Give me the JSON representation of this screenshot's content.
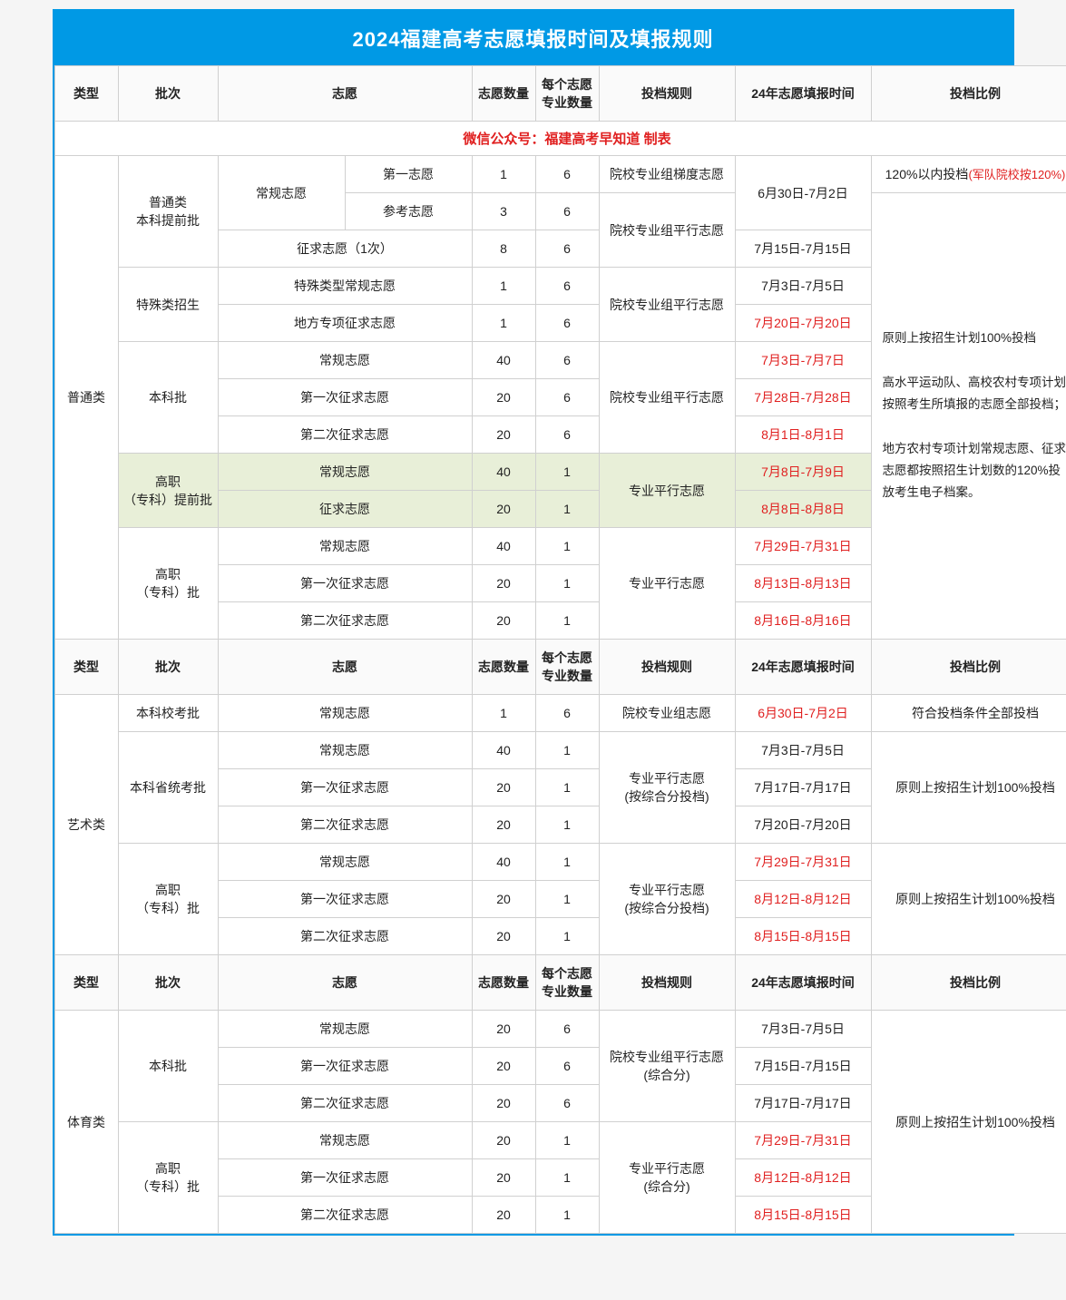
{
  "title": "2024福建高考志愿填报时间及填报规则",
  "banner": "微信公众号：福建高考早知道 制表",
  "headers": {
    "type": "类型",
    "batch": "批次",
    "preference": "志愿",
    "pref_count": "志愿数量",
    "major_count": "每个志愿专业数量",
    "rule": "投档规则",
    "time": "24年志愿填报时间",
    "ratio": "投档比例"
  },
  "categories": {
    "general": "普通类",
    "art": "艺术类",
    "sports": "体育类"
  },
  "batches": {
    "undergrad_early": "普通类\n本科提前批",
    "special_recruit": "特殊类招生",
    "undergrad": "本科批",
    "vocational_early": "高职\n（专科）提前批",
    "vocational": "高职\n（专科）批",
    "art_school_exam": "本科校考批",
    "art_prov_exam": "本科省统考批"
  },
  "prefs": {
    "regular": "常规志愿",
    "first": "第一志愿",
    "reference": "参考志愿",
    "supp_once": "征求志愿（1次）",
    "special_regular": "特殊类型常规志愿",
    "local_special_supp": "地方专项征求志愿",
    "first_supp": "第一次征求志愿",
    "second_supp": "第二次征求志愿",
    "supp": "征求志愿"
  },
  "rules": {
    "school_major_ladder": "院校专业组梯度志愿",
    "school_major_parallel": "院校专业组平行志愿",
    "major_parallel": "专业平行志愿",
    "school_major": "院校专业组志愿",
    "major_parallel_comp": "专业平行志愿\n(按综合分投档)",
    "school_major_parallel_comp": "院校专业组平行志愿\n(综合分)",
    "major_parallel_comp2": "专业平行志愿\n(综合分)"
  },
  "times": {
    "t0630_0702": "6月30日-7月2日",
    "t0715_0715": "7月15日-7月15日",
    "t0703_0705": "7月3日-7月5日",
    "t0720_0720": "7月20日-7月20日",
    "t0703_0707": "7月3日-7月7日",
    "t0728_0728": "7月28日-7月28日",
    "t0801_0801": "8月1日-8月1日",
    "t0708_0709": "7月8日-7月9日",
    "t0808_0808": "8月8日-8月8日",
    "t0729_0731": "7月29日-7月31日",
    "t0813_0813": "8月13日-8月13日",
    "t0816_0816": "8月16日-8月16日",
    "t0717_0717": "7月17日-7月17日",
    "t0812_0812": "8月12日-8月12日",
    "t0815_0815": "8月15日-8月15日"
  },
  "ratios": {
    "r120_prefix": "120%以内投档",
    "r120_note": "(军队院校按120%)",
    "r100_long_p1": "原则上按招生计划100%投档",
    "r100_long_p2": "高水平运动队、高校农村专项计划按照考生所填报的志愿全部投档；",
    "r100_long_p3": "地方农村专项计划常规志愿、征求志愿都按照招生计划数的120%投放考生电子档案。",
    "r_all_qualified": "符合投档条件全部投档",
    "r100": "原则上按招生计划100%投档"
  },
  "nums": {
    "n1": "1",
    "n3": "3",
    "n6": "6",
    "n8": "8",
    "n20": "20",
    "n40": "40"
  },
  "colors": {
    "header_bg": "#0099e5",
    "border": "#d0d0d0",
    "red": "#e02020",
    "highlight_bg": "#e8efd8"
  }
}
